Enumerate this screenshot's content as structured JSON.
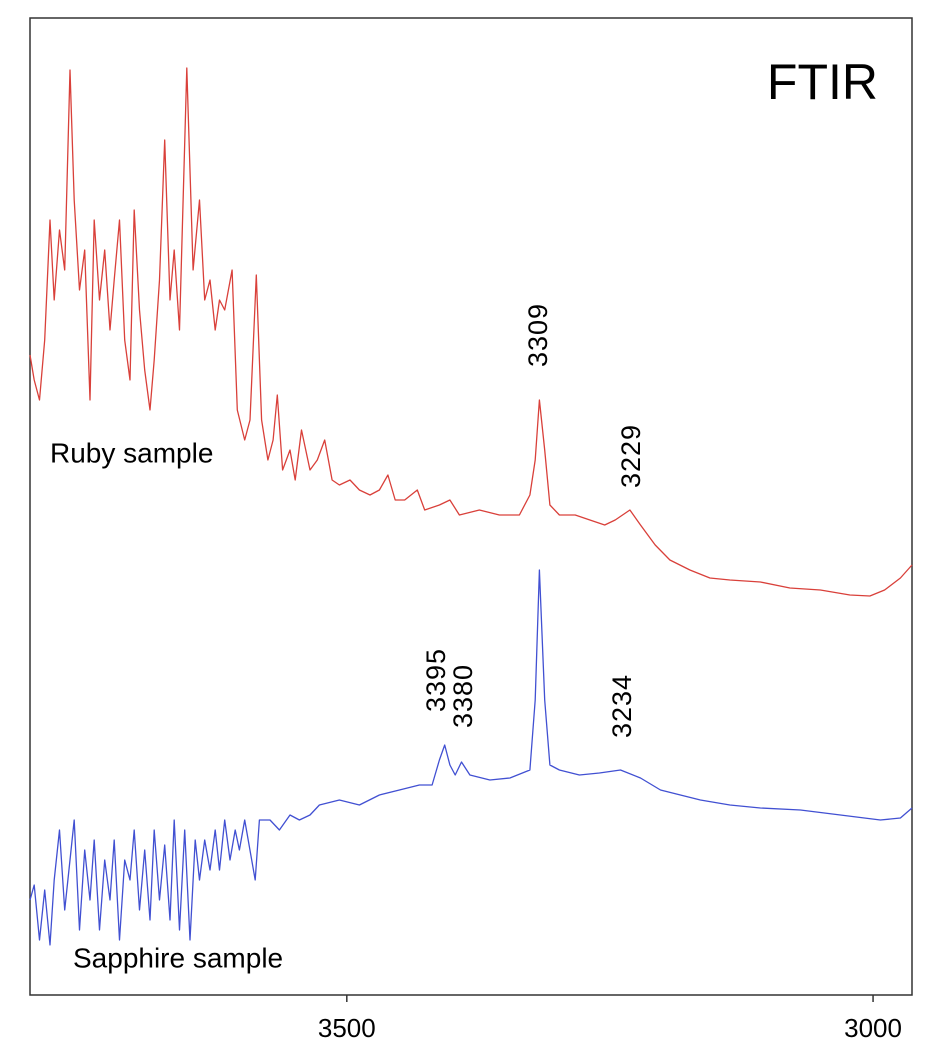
{
  "chart_data": {
    "type": "line",
    "title": "FTIR",
    "xlim": [
      3801,
      2963
    ],
    "ylim": [
      0,
      977
    ],
    "xticks": [
      3500,
      3000
    ],
    "grid": false,
    "series": [
      {
        "name": "Ruby sample",
        "color": "#d9403a",
        "x": [
          3801,
          3797,
          3792,
          3787,
          3782,
          3778,
          3773,
          3768,
          3763,
          3759,
          3754,
          3749,
          3744,
          3740,
          3735,
          3730,
          3725,
          3721,
          3716,
          3711,
          3706,
          3702,
          3697,
          3692,
          3687,
          3683,
          3678,
          3673,
          3668,
          3664,
          3659,
          3652,
          3646,
          3640,
          3635,
          3630,
          3625,
          3621,
          3616,
          3609,
          3604,
          3597,
          3592,
          3586,
          3581,
          3575,
          3570,
          3566,
          3561,
          3554,
          3549,
          3543,
          3535,
          3528,
          3521,
          3514,
          3507,
          3497,
          3488,
          3478,
          3469,
          3461,
          3454,
          3445,
          3433,
          3426,
          3412,
          3402,
          3393,
          3374,
          3355,
          3336,
          3326,
          3321,
          3317,
          3312,
          3307,
          3298,
          3283,
          3269,
          3255,
          3245,
          3231,
          3221,
          3207,
          3193,
          3174,
          3155,
          3136,
          3107,
          3079,
          3050,
          3022,
          3003,
          2989,
          2974,
          2963
        ],
        "values": [
          640,
          615,
          595,
          655,
          775,
          695,
          765,
          725,
          925,
          795,
          705,
          745,
          595,
          775,
          695,
          745,
          665,
          715,
          775,
          655,
          615,
          785,
          685,
          625,
          585,
          635,
          715,
          855,
          695,
          745,
          665,
          927,
          725,
          795,
          695,
          715,
          665,
          695,
          685,
          725,
          585,
          555,
          575,
          720,
          575,
          535,
          555,
          600,
          525,
          545,
          515,
          565,
          525,
          535,
          555,
          515,
          510,
          515,
          505,
          500,
          505,
          520,
          495,
          495,
          505,
          485,
          490,
          495,
          480,
          485,
          480,
          480,
          500,
          535,
          595,
          545,
          490,
          480,
          480,
          475,
          470,
          475,
          485,
          470,
          450,
          435,
          425,
          417,
          415,
          413,
          407,
          405,
          400,
          399,
          405,
          417,
          430
        ]
      },
      {
        "name": "Sapphire sample",
        "color": "#4150d2",
        "x": [
          3801,
          3797,
          3792,
          3787,
          3782,
          3778,
          3773,
          3768,
          3763,
          3759,
          3754,
          3749,
          3744,
          3740,
          3735,
          3730,
          3725,
          3721,
          3716,
          3711,
          3706,
          3702,
          3697,
          3692,
          3687,
          3683,
          3678,
          3673,
          3668,
          3664,
          3659,
          3654,
          3649,
          3644,
          3640,
          3635,
          3630,
          3625,
          3621,
          3616,
          3611,
          3606,
          3602,
          3597,
          3587,
          3583,
          3573,
          3564,
          3554,
          3545,
          3535,
          3526,
          3507,
          3488,
          3469,
          3450,
          3431,
          3419,
          3412,
          3407,
          3402,
          3397,
          3391,
          3383,
          3364,
          3345,
          3326,
          3321,
          3317,
          3312,
          3307,
          3298,
          3279,
          3260,
          3240,
          3221,
          3202,
          3183,
          3164,
          3136,
          3107,
          3069,
          3031,
          2993,
          2974,
          2963
        ],
        "values": [
          95,
          110,
          55,
          105,
          50,
          115,
          165,
          85,
          135,
          175,
          65,
          145,
          95,
          155,
          65,
          135,
          95,
          155,
          55,
          135,
          115,
          165,
          85,
          145,
          75,
          165,
          95,
          150,
          75,
          175,
          65,
          165,
          55,
          155,
          115,
          155,
          125,
          165,
          125,
          175,
          135,
          165,
          145,
          175,
          115,
          175,
          175,
          165,
          180,
          175,
          180,
          190,
          195,
          190,
          200,
          205,
          210,
          210,
          235,
          250,
          230,
          220,
          233,
          220,
          215,
          217,
          225,
          295,
          425,
          295,
          230,
          225,
          220,
          222,
          225,
          217,
          205,
          200,
          195,
          190,
          187,
          185,
          180,
          175,
          177,
          187
        ]
      }
    ],
    "annotations": [
      "3309",
      "3229",
      "3395",
      "3380",
      "3234"
    ]
  }
}
